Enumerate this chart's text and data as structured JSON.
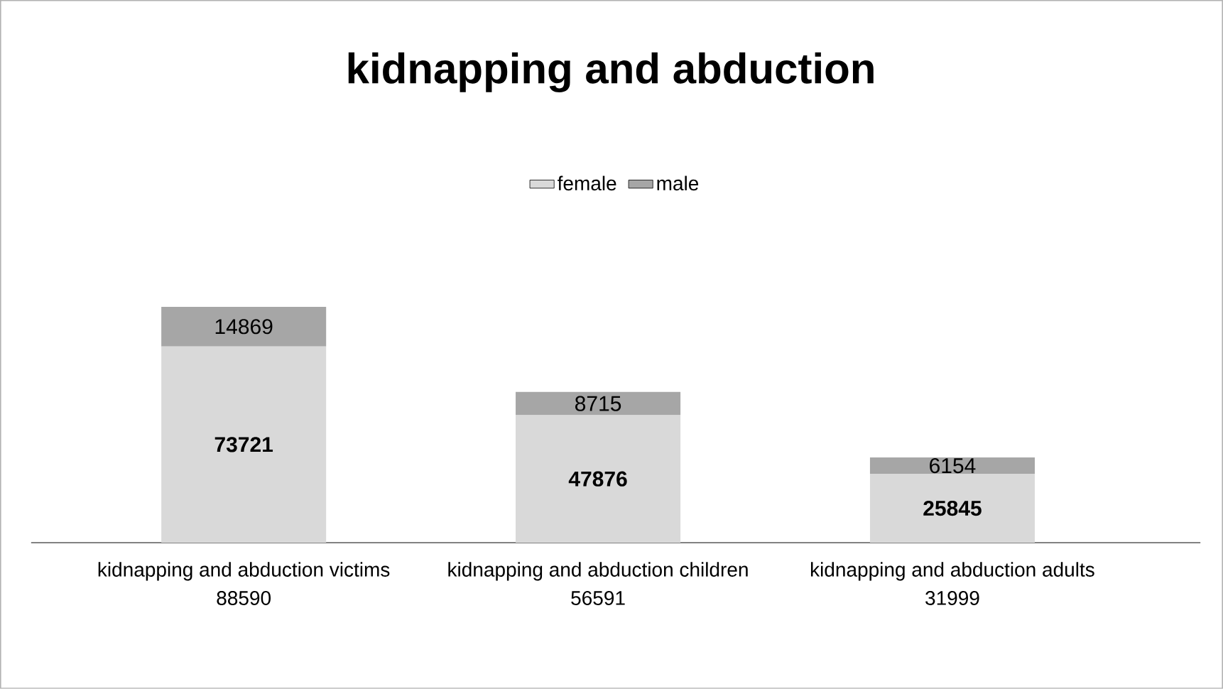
{
  "chart_data": {
    "type": "bar",
    "title": "kidnapping and abduction",
    "stacked": true,
    "legend": "top",
    "data_labels": true,
    "categories": [
      "kidnapping and abduction victims",
      "kidnapping and abduction children",
      "kidnapping and abduction adults"
    ],
    "totals": [
      "88590",
      "56591",
      "31999"
    ],
    "series": [
      {
        "name": "female",
        "color": "#d9d9d9",
        "values": [
          73721,
          47876,
          25845
        ]
      },
      {
        "name": "male",
        "color": "#a6a6a6",
        "values": [
          14869,
          8715,
          6154
        ]
      }
    ]
  }
}
